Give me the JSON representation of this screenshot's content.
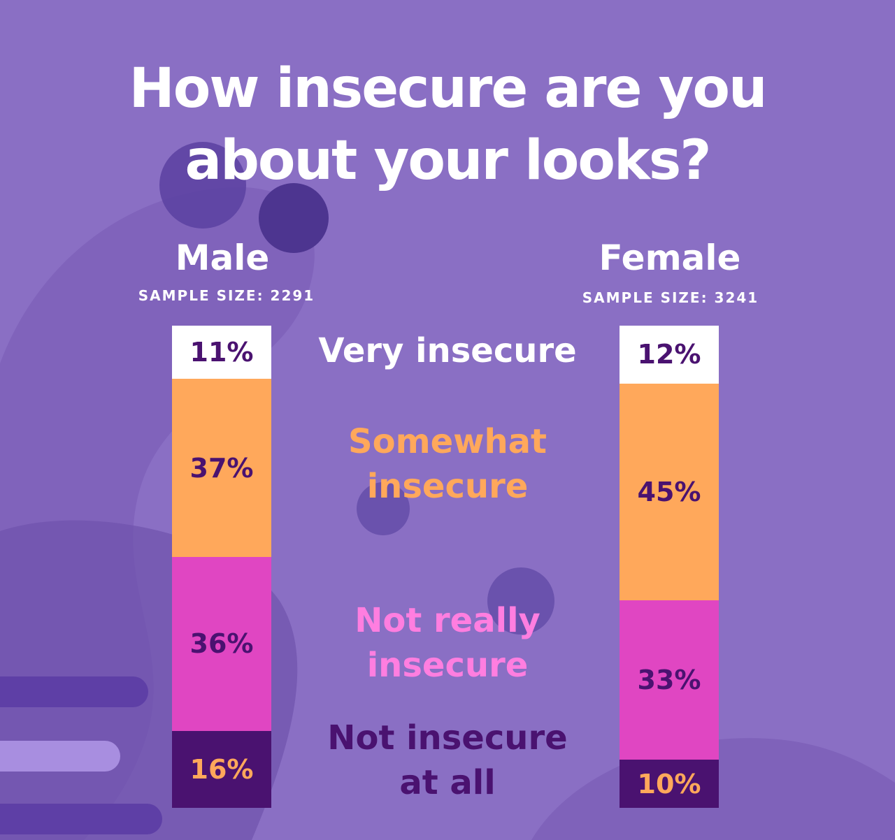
{
  "title_line1": "How insecure are you",
  "title_line2": "about your looks?",
  "colors": {
    "background": "#8a6fc4",
    "very_insecure": "#ffffff",
    "somewhat_insecure": "#ffa85b",
    "not_really_insecure": "#e046c2",
    "not_insecure_at_all": "#4a1270",
    "dark_text": "#4a1270"
  },
  "categories": [
    {
      "line1": "Very insecure",
      "line2": ""
    },
    {
      "line1": "Somewhat",
      "line2": "insecure"
    },
    {
      "line1": "Not really",
      "line2": "insecure"
    },
    {
      "line1": "Not insecure",
      "line2": "at all"
    }
  ],
  "groups": [
    {
      "name": "Male",
      "sample": "SAMPLE SIZE: 2291",
      "labels": [
        "11%",
        "37%",
        "36%",
        "16%"
      ]
    },
    {
      "name": "Female",
      "sample": "SAMPLE SIZE: 3241",
      "labels": [
        "12%",
        "45%",
        "33%",
        "10%"
      ]
    }
  ],
  "chart_data": {
    "type": "bar",
    "stacked": true,
    "title": "How insecure are you about your looks?",
    "categories": [
      "Male",
      "Female"
    ],
    "series": [
      {
        "name": "Very insecure",
        "values": [
          11,
          12
        ]
      },
      {
        "name": "Somewhat insecure",
        "values": [
          37,
          45
        ]
      },
      {
        "name": "Not really insecure",
        "values": [
          36,
          33
        ]
      },
      {
        "name": "Not insecure at all",
        "values": [
          16,
          10
        ]
      }
    ],
    "ylim": [
      0,
      100
    ],
    "grid": false,
    "legend": "center"
  }
}
